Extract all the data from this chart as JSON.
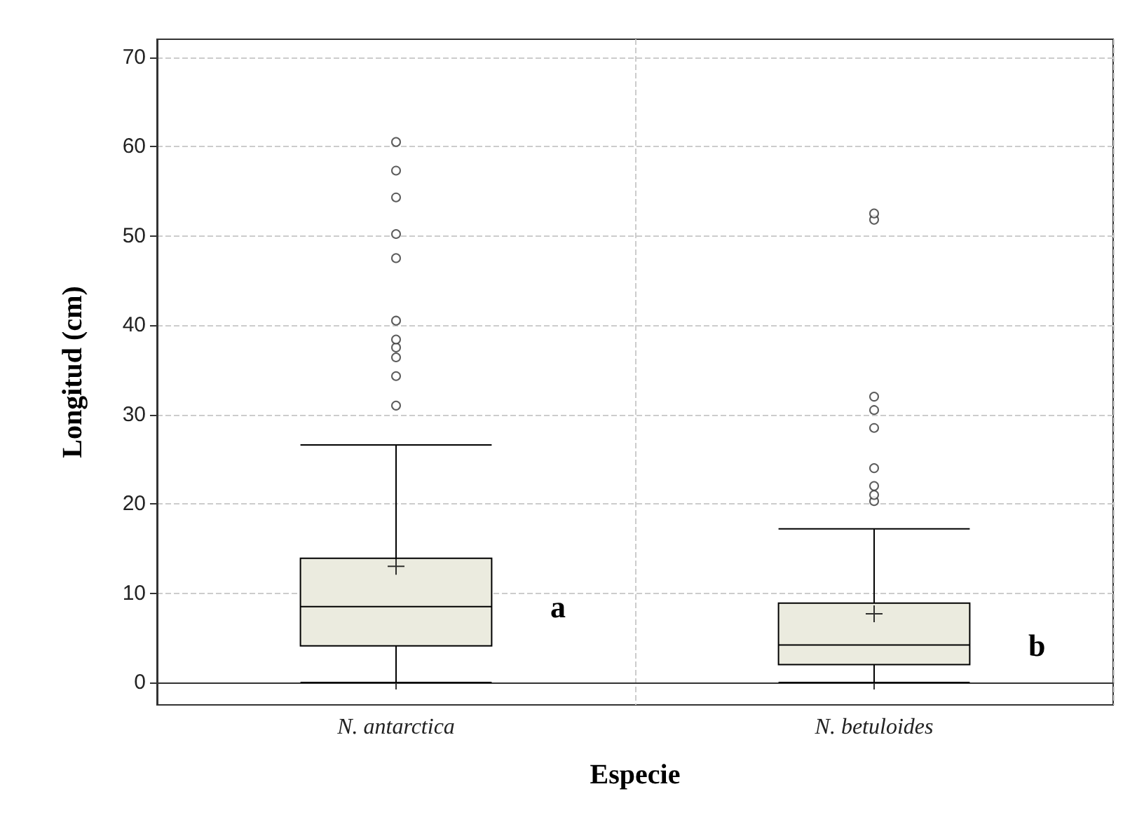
{
  "chart_data": {
    "type": "box",
    "xlabel": "Especie",
    "ylabel": "Longitud (cm)",
    "categories": [
      "N. antarctica",
      "N. betuloides"
    ],
    "boxes": [
      {
        "low": 0,
        "q1": 4.1,
        "median": 8.5,
        "q3": 13.9,
        "high": 26.6,
        "mean": 13.0,
        "outliers": [
          31.0,
          34.3,
          36.4,
          37.5,
          38.4,
          40.5,
          47.5,
          50.2,
          54.3,
          57.3,
          60.5
        ]
      },
      {
        "low": 0,
        "q1": 2.0,
        "median": 4.2,
        "q3": 8.9,
        "high": 17.2,
        "mean": 7.7,
        "outliers": [
          20.3,
          21.0,
          22.0,
          24.0,
          28.5,
          30.5,
          32.0,
          51.8,
          52.5
        ]
      }
    ],
    "color": "#ebebdf",
    "ylim": [
      -2.5,
      72
    ],
    "yticks": [
      0,
      10,
      20,
      30,
      40,
      50,
      60,
      70
    ],
    "grid": true,
    "annotations": [
      "a",
      "b"
    ]
  }
}
